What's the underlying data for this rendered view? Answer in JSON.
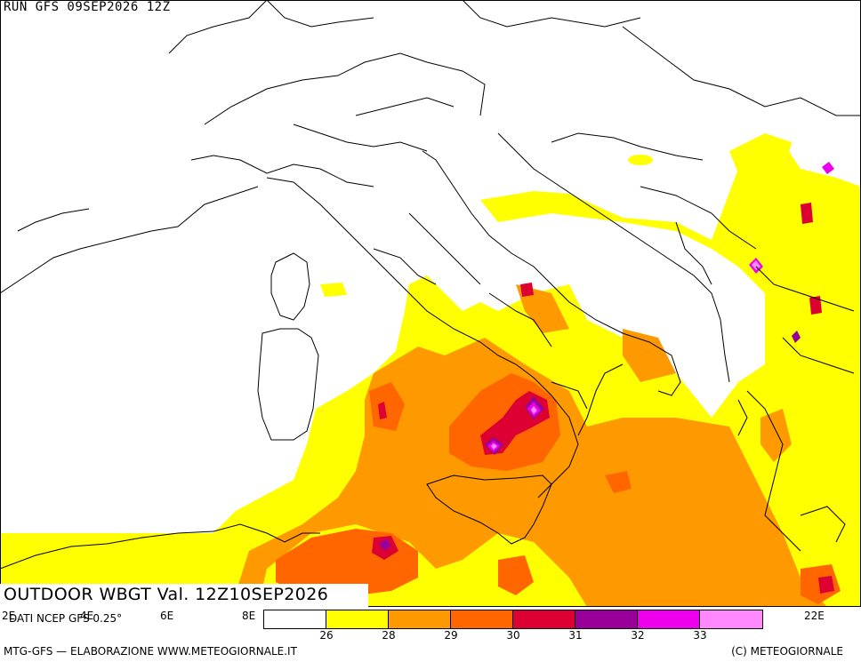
{
  "header": {
    "run_label": "RUN GFS 09SEP2026 12Z"
  },
  "map": {
    "title": "OUTDOOR WBGT Val. 12Z10SEP2026",
    "source": "DATI NCEP GFS 0.25°",
    "longitude_labels": [
      "2E",
      "4E",
      "6E",
      "8E",
      "22E"
    ]
  },
  "legend": {
    "colors": [
      "#ffffff",
      "#ffff00",
      "#ff9900",
      "#ff6600",
      "#dd0033",
      "#990099",
      "#ee00ee",
      "#ff88ff"
    ],
    "ticks": [
      "26",
      "28",
      "29",
      "30",
      "31",
      "32",
      "33"
    ]
  },
  "footer": {
    "left": "MTG-GFS — ELABORAZIONE WWW.METEOGIORNALE.IT",
    "right": "(C) METEOGIORNALE"
  }
}
